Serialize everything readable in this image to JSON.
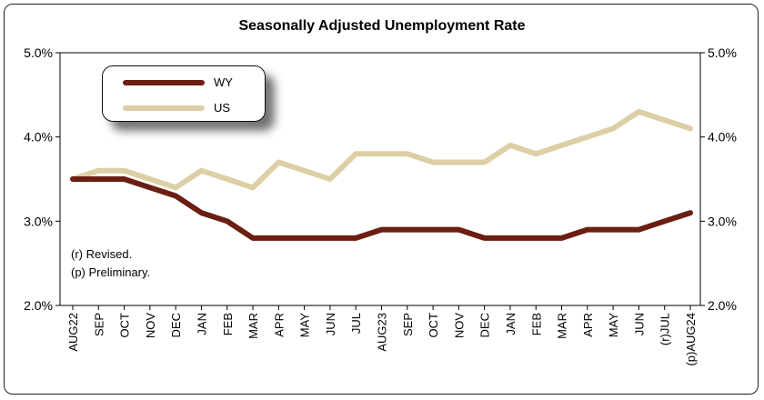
{
  "chart_data": {
    "type": "line",
    "title": "Seasonally Adjusted Unemployment Rate",
    "categories": [
      "AUG22",
      "SEP",
      "OCT",
      "NOV",
      "DEC",
      "JAN",
      "FEB",
      "MAR",
      "APR",
      "MAY",
      "JUN",
      "JUL",
      "AUG23",
      "SEP",
      "OCT",
      "NOV",
      "DEC",
      "JAN",
      "FEB",
      "MAR",
      "APR",
      "MAY",
      "JUN",
      "(r)JUL",
      "(p)AUG24"
    ],
    "series": [
      {
        "name": "WY",
        "color": "#6b1e12",
        "values": [
          3.5,
          3.5,
          3.5,
          3.4,
          3.3,
          3.1,
          3.0,
          2.8,
          2.8,
          2.8,
          2.8,
          2.8,
          2.9,
          2.9,
          2.9,
          2.9,
          2.8,
          2.8,
          2.8,
          2.8,
          2.9,
          2.9,
          2.9,
          3.0,
          3.1
        ]
      },
      {
        "name": "US",
        "color": "#dccfa6",
        "values": [
          3.5,
          3.6,
          3.6,
          3.5,
          3.4,
          3.6,
          3.5,
          3.4,
          3.7,
          3.6,
          3.5,
          3.8,
          3.8,
          3.8,
          3.7,
          3.7,
          3.7,
          3.9,
          3.8,
          3.9,
          4.0,
          4.1,
          4.3,
          4.2,
          4.1
        ]
      }
    ],
    "ylim": [
      2.0,
      5.0
    ],
    "yticks": [
      "2.0%",
      "3.0%",
      "4.0%",
      "5.0%"
    ],
    "legend_position": "top-left",
    "grid": false
  },
  "notes": [
    "(r) Revised.",
    "(p) Preliminary."
  ]
}
